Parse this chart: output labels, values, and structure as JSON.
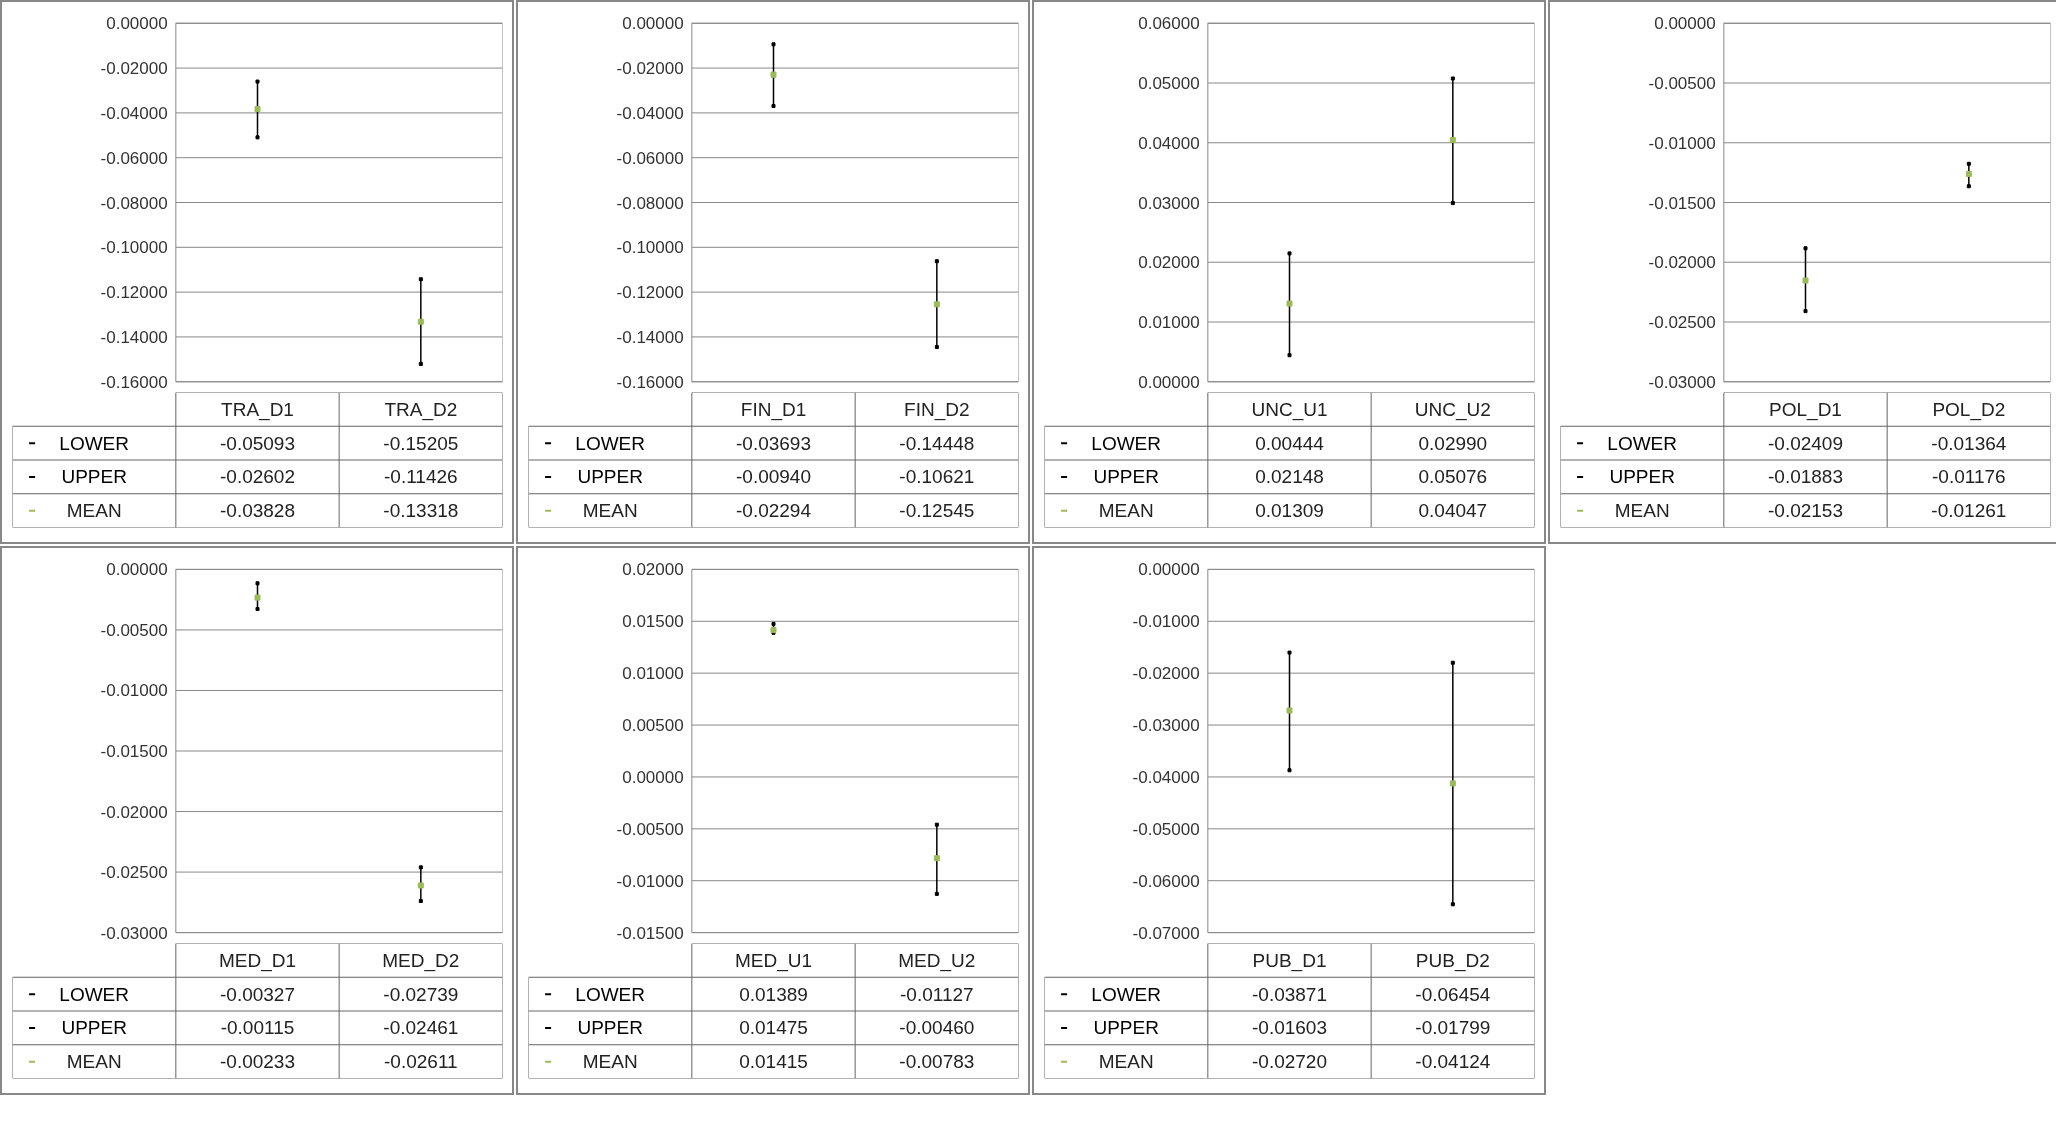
{
  "chart_data": [
    {
      "type": "scatter",
      "categories": [
        "TRA_D1",
        "TRA_D2"
      ],
      "series": [
        {
          "name": "LOWER",
          "color": "#000000",
          "marker": "square",
          "values": [
            -0.05093,
            -0.15205
          ],
          "value_labels": [
            "-0.05093",
            "-0.15205"
          ]
        },
        {
          "name": "UPPER",
          "color": "#000000",
          "marker": "square",
          "values": [
            -0.02602,
            -0.11426
          ],
          "value_labels": [
            "-0.02602",
            "-0.11426"
          ]
        },
        {
          "name": "MEAN",
          "color": "#9bbb59",
          "values": [
            -0.03828,
            -0.13318
          ],
          "value_labels": [
            "-0.03828",
            "-0.13318"
          ]
        }
      ],
      "ylim": [
        -0.16,
        0
      ],
      "yticks": [
        {
          "value": 0,
          "label": "0.00000"
        },
        {
          "value": -0.02,
          "label": "-0.02000"
        },
        {
          "value": -0.04,
          "label": "-0.04000"
        },
        {
          "value": -0.06,
          "label": "-0.06000"
        },
        {
          "value": -0.08,
          "label": "-0.08000"
        },
        {
          "value": -0.1,
          "label": "-0.10000"
        },
        {
          "value": -0.12,
          "label": "-0.12000"
        },
        {
          "value": -0.14,
          "label": "-0.14000"
        },
        {
          "value": -0.16,
          "label": "-0.16000"
        }
      ],
      "grid": "y",
      "tick_labels": "y",
      "marker": "square",
      "legend": "bottom"
    },
    {
      "type": "scatter",
      "categories": [
        "FIN_D1",
        "FIN_D2"
      ],
      "series": [
        {
          "name": "LOWER",
          "color": "#000000",
          "marker": "square",
          "values": [
            -0.03693,
            -0.14448
          ],
          "value_labels": [
            "-0.03693",
            "-0.14448"
          ]
        },
        {
          "name": "UPPER",
          "color": "#000000",
          "marker": "square",
          "values": [
            -0.0094,
            -0.10621
          ],
          "value_labels": [
            "-0.00940",
            "-0.10621"
          ]
        },
        {
          "name": "MEAN",
          "color": "#9bbb59",
          "values": [
            -0.02294,
            -0.12545
          ],
          "value_labels": [
            "-0.02294",
            "-0.12545"
          ]
        }
      ],
      "ylim": [
        -0.16,
        0
      ],
      "yticks": [
        {
          "value": 0,
          "label": "0.00000"
        },
        {
          "value": -0.02,
          "label": "-0.02000"
        },
        {
          "value": -0.04,
          "label": "-0.04000"
        },
        {
          "value": -0.06,
          "label": "-0.06000"
        },
        {
          "value": -0.08,
          "label": "-0.08000"
        },
        {
          "value": -0.1,
          "label": "-0.10000"
        },
        {
          "value": -0.12,
          "label": "-0.12000"
        },
        {
          "value": -0.14,
          "label": "-0.14000"
        },
        {
          "value": -0.16,
          "label": "-0.16000"
        }
      ],
      "grid": "y",
      "tick_labels": "y",
      "marker": "square",
      "legend": "bottom"
    },
    {
      "type": "scatter",
      "categories": [
        "UNC_U1",
        "UNC_U2"
      ],
      "series": [
        {
          "name": "LOWER",
          "color": "#000000",
          "marker": "square",
          "values": [
            0.00444,
            0.0299
          ],
          "value_labels": [
            "0.00444",
            "0.02990"
          ]
        },
        {
          "name": "UPPER",
          "color": "#000000",
          "marker": "square",
          "values": [
            0.02148,
            0.05076
          ],
          "value_labels": [
            "0.02148",
            "0.05076"
          ]
        },
        {
          "name": "MEAN",
          "color": "#9bbb59",
          "values": [
            0.01309,
            0.04047
          ],
          "value_labels": [
            "0.01309",
            "0.04047"
          ]
        }
      ],
      "ylim": [
        0,
        0.06
      ],
      "yticks": [
        {
          "value": 0,
          "label": "0.00000"
        },
        {
          "value": 0.01,
          "label": "0.01000"
        },
        {
          "value": 0.02,
          "label": "0.02000"
        },
        {
          "value": 0.03,
          "label": "0.03000"
        },
        {
          "value": 0.04,
          "label": "0.04000"
        },
        {
          "value": 0.05,
          "label": "0.05000"
        },
        {
          "value": 0.06,
          "label": "0.06000"
        }
      ],
      "grid": "y",
      "tick_labels": "y",
      "marker": "square",
      "legend": "bottom"
    },
    {
      "type": "scatter",
      "categories": [
        "POL_D1",
        "POL_D2"
      ],
      "series": [
        {
          "name": "LOWER",
          "color": "#000000",
          "marker": "square",
          "values": [
            -0.02409,
            -0.01364
          ],
          "value_labels": [
            "-0.02409",
            "-0.01364"
          ]
        },
        {
          "name": "UPPER",
          "color": "#000000",
          "marker": "square",
          "values": [
            -0.01883,
            -0.01176
          ],
          "value_labels": [
            "-0.01883",
            "-0.01176"
          ]
        },
        {
          "name": "MEAN",
          "color": "#9bbb59",
          "values": [
            -0.02153,
            -0.01261
          ],
          "value_labels": [
            "-0.02153",
            "-0.01261"
          ]
        }
      ],
      "ylim": [
        -0.03,
        0
      ],
      "yticks": [
        {
          "value": 0,
          "label": "0.00000"
        },
        {
          "value": -0.005,
          "label": "-0.00500"
        },
        {
          "value": -0.01,
          "label": "-0.01000"
        },
        {
          "value": -0.015,
          "label": "-0.01500"
        },
        {
          "value": -0.02,
          "label": "-0.02000"
        },
        {
          "value": -0.025,
          "label": "-0.02500"
        },
        {
          "value": -0.03,
          "label": "-0.03000"
        }
      ],
      "grid": "y",
      "tick_labels": "y",
      "marker": "square",
      "legend": "bottom"
    },
    {
      "type": "scatter",
      "categories": [
        "MED_D1",
        "MED_D2"
      ],
      "series": [
        {
          "name": "LOWER",
          "color": "#000000",
          "marker": "square",
          "values": [
            -0.00327,
            -0.02739
          ],
          "value_labels": [
            "-0.00327",
            "-0.02739"
          ]
        },
        {
          "name": "UPPER",
          "color": "#000000",
          "marker": "square",
          "values": [
            -0.00115,
            -0.02461
          ],
          "value_labels": [
            "-0.00115",
            "-0.02461"
          ]
        },
        {
          "name": "MEAN",
          "color": "#9bbb59",
          "values": [
            -0.00233,
            -0.02611
          ],
          "value_labels": [
            "-0.00233",
            "-0.02611"
          ]
        }
      ],
      "ylim": [
        -0.03,
        0
      ],
      "yticks": [
        {
          "value": 0,
          "label": "0.00000"
        },
        {
          "value": -0.005,
          "label": "-0.00500"
        },
        {
          "value": -0.01,
          "label": "-0.01000"
        },
        {
          "value": -0.015,
          "label": "-0.01500"
        },
        {
          "value": -0.02,
          "label": "-0.02000"
        },
        {
          "value": -0.025,
          "label": "-0.02500"
        },
        {
          "value": -0.03,
          "label": "-0.03000"
        }
      ],
      "grid": "y",
      "tick_labels": "y",
      "marker": "square",
      "legend": "bottom"
    },
    {
      "type": "scatter",
      "categories": [
        "MED_U1",
        "MED_U2"
      ],
      "series": [
        {
          "name": "LOWER",
          "color": "#000000",
          "marker": "square",
          "values": [
            0.01389,
            -0.01127
          ],
          "value_labels": [
            "0.01389",
            "-0.01127"
          ]
        },
        {
          "name": "UPPER",
          "color": "#000000",
          "marker": "square",
          "values": [
            0.01475,
            -0.0046
          ],
          "value_labels": [
            "0.01475",
            "-0.00460"
          ]
        },
        {
          "name": "MEAN",
          "color": "#9bbb59",
          "values": [
            0.01415,
            -0.00783
          ],
          "value_labels": [
            "0.01415",
            "-0.00783"
          ]
        }
      ],
      "ylim": [
        -0.015,
        0.02
      ],
      "yticks": [
        {
          "value": 0.02,
          "label": "0.02000"
        },
        {
          "value": 0.015,
          "label": "0.01500"
        },
        {
          "value": 0.01,
          "label": "0.01000"
        },
        {
          "value": 0.005,
          "label": "0.00500"
        },
        {
          "value": 0,
          "label": "0.00000"
        },
        {
          "value": -0.005,
          "label": "-0.00500"
        },
        {
          "value": -0.01,
          "label": "-0.01000"
        },
        {
          "value": -0.015,
          "label": "-0.01500"
        }
      ],
      "grid": "y",
      "tick_labels": "y",
      "marker": "square",
      "legend": "bottom"
    },
    {
      "type": "scatter",
      "categories": [
        "PUB_D1",
        "PUB_D2"
      ],
      "series": [
        {
          "name": "LOWER",
          "color": "#000000",
          "marker": "square",
          "values": [
            -0.03871,
            -0.06454
          ],
          "value_labels": [
            "-0.03871",
            "-0.06454"
          ]
        },
        {
          "name": "UPPER",
          "color": "#000000",
          "marker": "square",
          "values": [
            -0.01603,
            -0.01799
          ],
          "value_labels": [
            "-0.01603",
            "-0.01799"
          ]
        },
        {
          "name": "MEAN",
          "color": "#9bbb59",
          "values": [
            -0.0272,
            -0.04124
          ],
          "value_labels": [
            "-0.02720",
            "-0.04124"
          ]
        }
      ],
      "ylim": [
        -0.07,
        0
      ],
      "yticks": [
        {
          "value": 0,
          "label": "0.00000"
        },
        {
          "value": -0.01,
          "label": "-0.01000"
        },
        {
          "value": -0.02,
          "label": "-0.02000"
        },
        {
          "value": -0.03,
          "label": "-0.03000"
        },
        {
          "value": -0.04,
          "label": "-0.04000"
        },
        {
          "value": -0.05,
          "label": "-0.05000"
        },
        {
          "value": -0.06,
          "label": "-0.06000"
        },
        {
          "value": -0.07,
          "label": "-0.07000"
        }
      ],
      "grid": "y",
      "tick_labels": "y",
      "marker": "square",
      "legend": "bottom"
    }
  ]
}
